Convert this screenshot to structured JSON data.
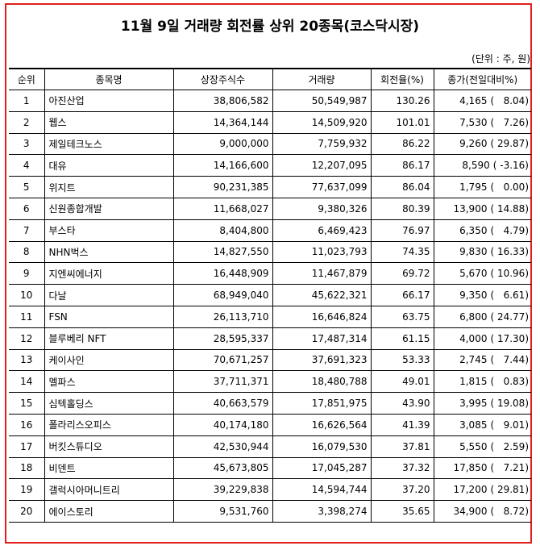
{
  "title": "11월 9일 거래량 회전률 상위 20종목(코스닥시장)",
  "unit": "(단위 : 주, 원)",
  "headers": {
    "rank": "순위",
    "name": "종목명",
    "shares": "상장주식수",
    "volume": "거래량",
    "turnover": "회전율(%)",
    "price": "종가(전일대비%)"
  },
  "rows": [
    {
      "rank": "1",
      "name": "아진산업",
      "shares": "38,806,582",
      "volume": "50,549,987",
      "turnover": "130.26",
      "price": "4,165",
      "change": "(   8.04)"
    },
    {
      "rank": "2",
      "name": "웹스",
      "shares": "14,364,144",
      "volume": "14,509,920",
      "turnover": "101.01",
      "price": "7,530",
      "change": "(   7.26)"
    },
    {
      "rank": "3",
      "name": "제일테크노스",
      "shares": "9,000,000",
      "volume": "7,759,932",
      "turnover": "86.22",
      "price": "9,260",
      "change": "( 29.87)"
    },
    {
      "rank": "4",
      "name": "대유",
      "shares": "14,166,600",
      "volume": "12,207,095",
      "turnover": "86.17",
      "price": "8,590",
      "change": "( -3.16)"
    },
    {
      "rank": "5",
      "name": "위지트",
      "shares": "90,231,385",
      "volume": "77,637,099",
      "turnover": "86.04",
      "price": "1,795",
      "change": "(   0.00)"
    },
    {
      "rank": "6",
      "name": "신원종합개발",
      "shares": "11,668,027",
      "volume": "9,380,326",
      "turnover": "80.39",
      "price": "13,900",
      "change": "( 14.88)"
    },
    {
      "rank": "7",
      "name": "부스타",
      "shares": "8,404,800",
      "volume": "6,469,423",
      "turnover": "76.97",
      "price": "6,350",
      "change": "(   4.79)"
    },
    {
      "rank": "8",
      "name": "NHN벅스",
      "shares": "14,827,550",
      "volume": "11,023,793",
      "turnover": "74.35",
      "price": "9,830",
      "change": "( 16.33)"
    },
    {
      "rank": "9",
      "name": "지엔씨에너지",
      "shares": "16,448,909",
      "volume": "11,467,879",
      "turnover": "69.72",
      "price": "5,670",
      "change": "( 10.96)"
    },
    {
      "rank": "10",
      "name": "다날",
      "shares": "68,949,040",
      "volume": "45,622,321",
      "turnover": "66.17",
      "price": "9,350",
      "change": "(   6.61)"
    },
    {
      "rank": "11",
      "name": "FSN",
      "shares": "26,113,710",
      "volume": "16,646,824",
      "turnover": "63.75",
      "price": "6,800",
      "change": "( 24.77)"
    },
    {
      "rank": "12",
      "name": "블루베리 NFT",
      "shares": "28,595,337",
      "volume": "17,487,314",
      "turnover": "61.15",
      "price": "4,000",
      "change": "( 17.30)"
    },
    {
      "rank": "13",
      "name": "케이사인",
      "shares": "70,671,257",
      "volume": "37,691,323",
      "turnover": "53.33",
      "price": "2,745",
      "change": "(   7.44)"
    },
    {
      "rank": "14",
      "name": "멜파스",
      "shares": "37,711,371",
      "volume": "18,480,788",
      "turnover": "49.01",
      "price": "1,815",
      "change": "(   0.83)"
    },
    {
      "rank": "15",
      "name": "심텍홀딩스",
      "shares": "40,663,579",
      "volume": "17,851,975",
      "turnover": "43.90",
      "price": "3,995",
      "change": "( 19.08)"
    },
    {
      "rank": "16",
      "name": "폴라리스오피스",
      "shares": "40,174,180",
      "volume": "16,626,564",
      "turnover": "41.39",
      "price": "3,085",
      "change": "(   9.01)"
    },
    {
      "rank": "17",
      "name": "버킷스튜디오",
      "shares": "42,530,944",
      "volume": "16,079,530",
      "turnover": "37.81",
      "price": "5,550",
      "change": "(   2.59)"
    },
    {
      "rank": "18",
      "name": "비덴트",
      "shares": "45,673,805",
      "volume": "17,045,287",
      "turnover": "37.32",
      "price": "17,850",
      "change": "(   7.21)"
    },
    {
      "rank": "19",
      "name": "갤럭시아머니트리",
      "shares": "39,229,838",
      "volume": "14,594,744",
      "turnover": "37.20",
      "price": "17,200",
      "change": "( 29.81)"
    },
    {
      "rank": "20",
      "name": "에이스토리",
      "shares": "9,531,760",
      "volume": "3,398,274",
      "turnover": "35.65",
      "price": "34,900",
      "change": "(   8.72)"
    }
  ]
}
